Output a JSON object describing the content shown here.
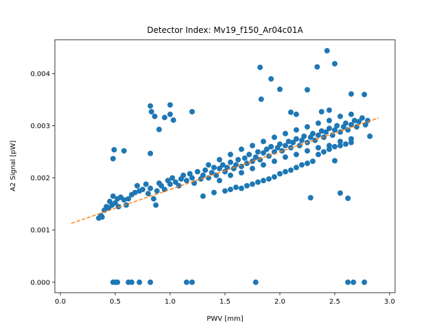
{
  "chart_data": {
    "type": "scatter",
    "title": "Detector Index: Mv19_f150_Ar04c01A",
    "xlabel": "PWV [mm]",
    "ylabel": "A2 Signal [pW]",
    "xlim": [
      -0.05,
      3.05
    ],
    "ylim": [
      -0.0002,
      0.00465
    ],
    "xticks": [
      0.0,
      0.5,
      1.0,
      1.5,
      2.0,
      2.5,
      3.0
    ],
    "xtick_labels": [
      "0.0",
      "0.5",
      "1.0",
      "1.5",
      "2.0",
      "2.5",
      "3.0"
    ],
    "yticks": [
      0.0,
      0.001,
      0.002,
      0.003,
      0.004
    ],
    "ytick_labels": [
      "0.000",
      "0.001",
      "0.002",
      "0.003",
      "0.004"
    ],
    "colors": {
      "points": "#1f77b4",
      "fit": "#ff7f0e"
    },
    "series": [
      {
        "name": "data",
        "points": [
          [
            0.35,
            0.00123
          ],
          [
            0.37,
            0.00128
          ],
          [
            0.38,
            0.00125
          ],
          [
            0.4,
            0.00138
          ],
          [
            0.42,
            0.00145
          ],
          [
            0.44,
            0.00142
          ],
          [
            0.45,
            0.00155
          ],
          [
            0.47,
            0.00148
          ],
          [
            0.48,
            0.00165
          ],
          [
            0.5,
            0.00152
          ],
          [
            0.52,
            0.0016
          ],
          [
            0.53,
            0.00145
          ],
          [
            0.55,
            0.00163
          ],
          [
            0.58,
            0.00158
          ],
          [
            0.6,
            0.00148
          ],
          [
            0.62,
            0.0016
          ],
          [
            0.65,
            0.00168
          ],
          [
            0.68,
            0.00172
          ],
          [
            0.7,
            0.00185
          ],
          [
            0.72,
            0.00175
          ],
          [
            0.75,
            0.00178
          ],
          [
            0.78,
            0.00188
          ],
          [
            0.8,
            0.0017
          ],
          [
            0.82,
            0.0018
          ],
          [
            0.85,
            0.0016
          ],
          [
            0.87,
            0.00148
          ],
          [
            0.88,
            0.00175
          ],
          [
            0.9,
            0.0019
          ],
          [
            0.92,
            0.00185
          ],
          [
            0.95,
            0.00178
          ],
          [
            0.98,
            0.00195
          ],
          [
            1.0,
            0.00188
          ],
          [
            1.02,
            0.002
          ],
          [
            1.05,
            0.00192
          ],
          [
            1.08,
            0.00185
          ],
          [
            1.1,
            0.00198
          ],
          [
            1.12,
            0.00205
          ],
          [
            1.15,
            0.00195
          ],
          [
            1.18,
            0.00208
          ],
          [
            1.2,
            0.002
          ],
          [
            1.22,
            0.0019
          ],
          [
            1.25,
            0.00212
          ],
          [
            1.28,
            0.00198
          ],
          [
            1.3,
            0.00205
          ],
          [
            1.32,
            0.00215
          ],
          [
            1.35,
            0.002
          ],
          [
            1.38,
            0.0021
          ],
          [
            1.4,
            0.0022
          ],
          [
            1.42,
            0.00205
          ],
          [
            1.45,
            0.00218
          ],
          [
            1.48,
            0.00225
          ],
          [
            1.5,
            0.00212
          ],
          [
            1.52,
            0.0022
          ],
          [
            1.55,
            0.0023
          ],
          [
            1.58,
            0.00218
          ],
          [
            1.6,
            0.00225
          ],
          [
            1.62,
            0.00235
          ],
          [
            1.65,
            0.00222
          ],
          [
            1.68,
            0.00238
          ],
          [
            1.7,
            0.00228
          ],
          [
            1.72,
            0.00245
          ],
          [
            1.75,
            0.00232
          ],
          [
            1.78,
            0.0024
          ],
          [
            1.8,
            0.0025
          ],
          [
            1.82,
            0.00235
          ],
          [
            1.85,
            0.00248
          ],
          [
            1.88,
            0.00255
          ],
          [
            1.9,
            0.00242
          ],
          [
            1.92,
            0.0026
          ],
          [
            1.95,
            0.0025
          ],
          [
            1.98,
            0.00258
          ],
          [
            2.0,
            0.00265
          ],
          [
            2.02,
            0.00252
          ],
          [
            2.05,
            0.00262
          ],
          [
            2.08,
            0.0027
          ],
          [
            2.1,
            0.00258
          ],
          [
            2.12,
            0.00268
          ],
          [
            2.15,
            0.00275
          ],
          [
            2.18,
            0.00262
          ],
          [
            2.2,
            0.00272
          ],
          [
            2.22,
            0.0028
          ],
          [
            2.25,
            0.00268
          ],
          [
            2.28,
            0.00278
          ],
          [
            2.3,
            0.00285
          ],
          [
            2.32,
            0.00272
          ],
          [
            2.35,
            0.00282
          ],
          [
            2.38,
            0.0029
          ],
          [
            2.4,
            0.00278
          ],
          [
            2.42,
            0.00288
          ],
          [
            2.45,
            0.00295
          ],
          [
            2.48,
            0.00282
          ],
          [
            2.5,
            0.00292
          ],
          [
            2.52,
            0.003
          ],
          [
            2.55,
            0.00288
          ],
          [
            2.58,
            0.00298
          ],
          [
            2.6,
            0.00305
          ],
          [
            2.62,
            0.00292
          ],
          [
            2.65,
            0.00302
          ],
          [
            2.68,
            0.0031
          ],
          [
            2.7,
            0.00298
          ],
          [
            2.72,
            0.00308
          ],
          [
            2.75,
            0.00315
          ],
          [
            2.78,
            0.00302
          ],
          [
            2.8,
            0.0031
          ],
          [
            2.82,
            0.0028
          ],
          [
            1.3,
            0.00165
          ],
          [
            1.4,
            0.00172
          ],
          [
            1.5,
            0.00175
          ],
          [
            1.55,
            0.00178
          ],
          [
            1.6,
            0.00182
          ],
          [
            1.65,
            0.0018
          ],
          [
            1.7,
            0.00185
          ],
          [
            1.75,
            0.00188
          ],
          [
            1.8,
            0.00192
          ],
          [
            1.85,
            0.00195
          ],
          [
            1.9,
            0.00198
          ],
          [
            1.95,
            0.00202
          ],
          [
            2.0,
            0.00208
          ],
          [
            2.05,
            0.00212
          ],
          [
            2.1,
            0.00215
          ],
          [
            2.15,
            0.0022
          ],
          [
            2.2,
            0.00225
          ],
          [
            2.25,
            0.00228
          ],
          [
            2.3,
            0.00232
          ],
          [
            2.35,
            0.00245
          ],
          [
            2.4,
            0.0025
          ],
          [
            2.45,
            0.00255
          ],
          [
            2.5,
            0.0026
          ],
          [
            2.55,
            0.00262
          ],
          [
            2.6,
            0.00265
          ],
          [
            2.65,
            0.00268
          ],
          [
            1.45,
            0.00195
          ],
          [
            1.55,
            0.00205
          ],
          [
            1.65,
            0.0021
          ],
          [
            1.75,
            0.00218
          ],
          [
            1.85,
            0.00225
          ],
          [
            1.95,
            0.00232
          ],
          [
            2.05,
            0.0024
          ],
          [
            2.15,
            0.00245
          ],
          [
            2.25,
            0.00252
          ],
          [
            2.35,
            0.00258
          ],
          [
            2.45,
            0.00262
          ],
          [
            2.55,
            0.0027
          ],
          [
            2.65,
            0.00275
          ],
          [
            1.35,
            0.00225
          ],
          [
            1.45,
            0.00235
          ],
          [
            1.55,
            0.00245
          ],
          [
            1.65,
            0.00255
          ],
          [
            1.75,
            0.00262
          ],
          [
            1.85,
            0.0027
          ],
          [
            1.95,
            0.00278
          ],
          [
            2.05,
            0.00285
          ],
          [
            2.15,
            0.00292
          ],
          [
            2.25,
            0.00298
          ],
          [
            2.35,
            0.00305
          ],
          [
            2.45,
            0.0031
          ],
          [
            2.55,
            0.00318
          ],
          [
            2.65,
            0.00322
          ],
          [
            0.48,
            0.00237
          ],
          [
            0.49,
            0.00254
          ],
          [
            0.58,
            0.00252
          ],
          [
            0.82,
            0.00247
          ],
          [
            0.82,
            0.00338
          ],
          [
            0.83,
            0.00327
          ],
          [
            0.86,
            0.00318
          ],
          [
            0.9,
            0.00293
          ],
          [
            0.95,
            0.00316
          ],
          [
            1.0,
            0.0034
          ],
          [
            1.0,
            0.00322
          ],
          [
            1.03,
            0.00311
          ],
          [
            1.2,
            0.00327
          ],
          [
            1.82,
            0.00412
          ],
          [
            1.83,
            0.00351
          ],
          [
            1.92,
            0.0039
          ],
          [
            2.0,
            0.0037
          ],
          [
            2.25,
            0.00369
          ],
          [
            2.28,
            0.00162
          ],
          [
            2.34,
            0.00413
          ],
          [
            2.43,
            0.00444
          ],
          [
            2.5,
            0.00419
          ],
          [
            2.5,
            0.00233
          ],
          [
            2.55,
            0.00171
          ],
          [
            2.62,
            0.00161
          ],
          [
            2.65,
            0.00361
          ],
          [
            2.77,
            0.0036
          ],
          [
            2.38,
            0.00327
          ],
          [
            2.45,
            0.0033
          ],
          [
            2.1,
            0.00326
          ],
          [
            2.15,
            0.00322
          ],
          [
            0.48,
            0.0
          ],
          [
            0.5,
            0.0
          ],
          [
            0.52,
            0.0
          ],
          [
            0.62,
            0.0
          ],
          [
            0.65,
            0.0
          ],
          [
            0.72,
            0.0
          ],
          [
            0.82,
            0.0
          ],
          [
            1.15,
            0.0
          ],
          [
            1.2,
            0.0
          ],
          [
            1.78,
            0.0
          ],
          [
            2.62,
            0.0
          ],
          [
            2.67,
            0.0
          ],
          [
            2.77,
            0.0
          ]
        ]
      },
      {
        "name": "fit",
        "style": "dashed",
        "line": [
          [
            0.1,
            0.00113
          ],
          [
            2.9,
            0.00315
          ]
        ]
      }
    ]
  }
}
